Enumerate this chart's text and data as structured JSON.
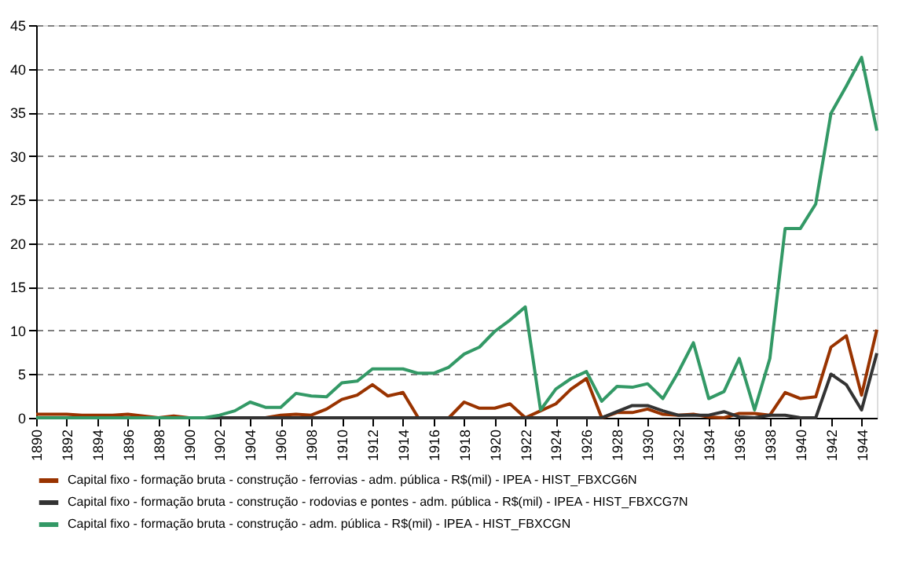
{
  "chart_data": {
    "type": "line",
    "x": [
      1890,
      1891,
      1892,
      1893,
      1894,
      1895,
      1896,
      1897,
      1898,
      1899,
      1900,
      1901,
      1902,
      1903,
      1904,
      1905,
      1906,
      1907,
      1908,
      1909,
      1910,
      1911,
      1912,
      1913,
      1914,
      1915,
      1916,
      1917,
      1918,
      1919,
      1920,
      1921,
      1922,
      1923,
      1924,
      1925,
      1926,
      1927,
      1928,
      1929,
      1930,
      1931,
      1932,
      1933,
      1934,
      1935,
      1936,
      1937,
      1938,
      1939,
      1940,
      1941,
      1942,
      1943,
      1944,
      1945
    ],
    "series": [
      {
        "name": "Capital fixo - formação bruta - construção - ferrovias - adm. pública - R$(mil) - IPEA - HIST_FBXCG6N",
        "color": "#993300",
        "values": [
          0.4,
          0.4,
          0.4,
          0.3,
          0.3,
          0.3,
          0.4,
          0.2,
          0,
          0.2,
          0,
          0,
          0,
          0,
          0,
          0,
          0.3,
          0.4,
          0.3,
          1,
          2.1,
          2.6,
          3.8,
          2.5,
          2.9,
          0,
          0,
          0,
          1.8,
          1.1,
          1.1,
          1.6,
          0,
          0.8,
          1.6,
          3.3,
          4.5,
          0,
          0.6,
          0.6,
          1,
          0.4,
          0.3,
          0.4,
          0.1,
          0,
          0.5,
          0.5,
          0.3,
          2.9,
          2.2,
          2.4,
          8.1,
          9.4,
          2.6,
          10.1
        ]
      },
      {
        "name": "Capital fixo - formação bruta - construção - rodovias e pontes - adm. pública - R$(mil) - IPEA - HIST_FBXCG7N",
        "color": "#333333",
        "values": [
          0,
          0,
          0,
          0,
          0,
          0,
          0,
          0,
          0,
          0,
          0,
          0,
          0,
          0,
          0,
          0,
          0,
          0,
          0,
          0,
          0,
          0,
          0,
          0,
          0,
          0,
          0,
          0,
          0,
          0,
          0,
          0,
          0,
          0,
          0,
          0,
          0,
          0,
          0.7,
          1.4,
          1.4,
          0.8,
          0.3,
          0.3,
          0.3,
          0.7,
          0.1,
          0,
          0.3,
          0.3,
          0,
          0,
          5,
          3.8,
          0.9,
          7.4
        ]
      },
      {
        "name": "Capital fixo - formação bruta - construção - adm. pública - R$(mil) - IPEA - HIST_FBXCGN",
        "color": "#339966",
        "values": [
          0,
          0,
          0,
          0,
          0,
          0,
          0,
          0,
          0,
          0,
          0,
          0,
          0.3,
          0.8,
          1.8,
          1.2,
          1.2,
          2.8,
          2.5,
          2.4,
          4,
          4.2,
          5.6,
          5.6,
          5.6,
          5.1,
          5.1,
          5.8,
          7.3,
          8.1,
          9.9,
          11.2,
          12.7,
          0.9,
          3.3,
          4.5,
          5.3,
          1.9,
          3.6,
          3.5,
          3.9,
          2.2,
          5.2,
          8.6,
          2.2,
          3,
          6.8,
          0.9,
          6.8,
          21.7,
          21.7,
          24.5,
          34.9,
          38,
          41.3,
          32.9
        ]
      }
    ],
    "xlim": [
      1890,
      1945
    ],
    "xticks": [
      1890,
      1892,
      1894,
      1896,
      1898,
      1900,
      1902,
      1904,
      1906,
      1908,
      1910,
      1912,
      1914,
      1916,
      1918,
      1920,
      1922,
      1924,
      1926,
      1928,
      1930,
      1932,
      1934,
      1936,
      1938,
      1940,
      1942,
      1944
    ],
    "ylim": [
      0,
      45
    ],
    "yticks": [
      0,
      5,
      10,
      15,
      20,
      25,
      30,
      35,
      40,
      45
    ],
    "grid": "y",
    "legend": "bottom",
    "marker": "none",
    "line_style": "solid"
  }
}
